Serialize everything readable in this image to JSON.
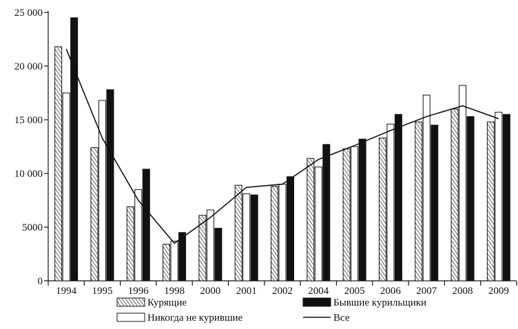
{
  "chart_data": {
    "type": "bar",
    "title": "",
    "xlabel": "",
    "ylabel": "",
    "categories": [
      "1994",
      "1995",
      "1996",
      "1998",
      "2000",
      "2001",
      "2002",
      "2004",
      "2005",
      "2006",
      "2007",
      "2008",
      "2009"
    ],
    "ylim": [
      0,
      25000
    ],
    "yticks": [
      0,
      5000,
      10000,
      15000,
      20000,
      25000
    ],
    "ytick_labels": [
      "0",
      "5000",
      "10 000",
      "15 000",
      "20 000",
      "25 000"
    ],
    "grid": false,
    "legend_position": "bottom",
    "series": [
      {
        "name": "Курящие",
        "kind": "bar",
        "pattern": "hatched",
        "values": [
          21800,
          12400,
          6900,
          3400,
          6100,
          8900,
          8800,
          11400,
          12300,
          13300,
          14800,
          16000,
          14800
        ]
      },
      {
        "name": "Никогда не курившие",
        "kind": "bar",
        "pattern": "white",
        "values": [
          17500,
          16800,
          8500,
          3700,
          6600,
          8100,
          9000,
          10600,
          12500,
          14600,
          17300,
          18200,
          15700
        ]
      },
      {
        "name": "Бывшие курильщики",
        "kind": "bar",
        "pattern": "black",
        "values": [
          24500,
          17800,
          10400,
          4500,
          4900,
          8000,
          9700,
          12700,
          13200,
          15500,
          14500,
          15300,
          15500
        ]
      },
      {
        "name": "Все",
        "kind": "line",
        "values": [
          21600,
          13300,
          7500,
          3500,
          5900,
          8700,
          9000,
          11300,
          12600,
          14000,
          15300,
          16300,
          15100
        ]
      }
    ]
  },
  "colors": {
    "ink": "#111111",
    "background": "#ffffff"
  }
}
